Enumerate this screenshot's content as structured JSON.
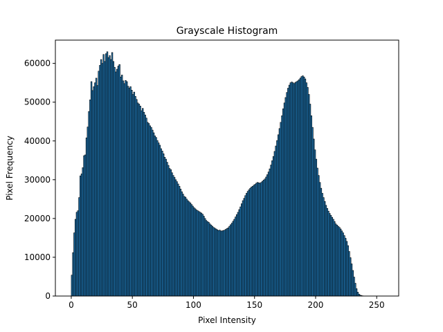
{
  "chart_data": {
    "type": "bar",
    "title": "Grayscale Histogram",
    "xlabel": "Pixel Intensity",
    "ylabel": "Pixel Frequency",
    "xlim": [
      -13,
      268
    ],
    "ylim": [
      0,
      66000
    ],
    "xticks": [
      0,
      50,
      100,
      150,
      200,
      250
    ],
    "yticks": [
      0,
      10000,
      20000,
      30000,
      40000,
      50000,
      60000
    ],
    "grid": false,
    "bar_color": "#1f77b4",
    "edge_color": "#000000",
    "bins_start": 0,
    "bin_width": 1,
    "values": [
      5400,
      11200,
      16300,
      19800,
      21600,
      22000,
      25400,
      31000,
      31500,
      33100,
      36200,
      36400,
      40800,
      43600,
      47600,
      50600,
      55300,
      53000,
      54000,
      55000,
      56200,
      54300,
      58000,
      59500,
      61000,
      60000,
      62300,
      60500,
      62500,
      63000,
      61500,
      62000,
      61000,
      62800,
      60500,
      59000,
      57800,
      58500,
      59300,
      59700,
      56500,
      57000,
      55500,
      54800,
      55600,
      55300,
      54100,
      53600,
      54000,
      53100,
      52000,
      52600,
      51500,
      50700,
      49800,
      49500,
      49000,
      47800,
      48400,
      47400,
      46700,
      45900,
      44800,
      44500,
      43900,
      43500,
      42800,
      42100,
      41300,
      40900,
      40100,
      39500,
      38900,
      38000,
      37400,
      36700,
      35800,
      35300,
      34500,
      33700,
      32900,
      32600,
      31800,
      31100,
      30600,
      30000,
      29500,
      28900,
      28300,
      27600,
      26900,
      26300,
      25700,
      25500,
      25000,
      24600,
      24300,
      24000,
      23600,
      23200,
      22800,
      22500,
      22200,
      22000,
      21800,
      21600,
      21400,
      21100,
      20600,
      20000,
      19500,
      19200,
      19000,
      18600,
      18300,
      18000,
      17700,
      17500,
      17300,
      17100,
      16900,
      17000,
      16800,
      16800,
      16900,
      17000,
      17200,
      17400,
      17600,
      18000,
      18400,
      18800,
      19300,
      19800,
      20400,
      21000,
      21600,
      22300,
      23000,
      23800,
      24600,
      25200,
      25900,
      26500,
      27000,
      27400,
      27800,
      28100,
      28300,
      28600,
      28800,
      29100,
      29300,
      29200,
      29100,
      29300,
      29600,
      29900,
      30200,
      30700,
      31300,
      32000,
      32800,
      33800,
      34900,
      36000,
      37300,
      38700,
      40100,
      41600,
      43200,
      44800,
      46500,
      48300,
      49800,
      51200,
      52500,
      53600,
      54400,
      55000,
      55200,
      55000,
      54800,
      55100,
      55300,
      55500,
      55800,
      56200,
      56600,
      56800,
      56500,
      56000,
      55000,
      53800,
      52000,
      49500,
      46500,
      43500,
      40500,
      37700,
      35300,
      33000,
      31100,
      29300,
      27800,
      26500,
      25400,
      24400,
      23400,
      22600,
      21900,
      21300,
      20800,
      20300,
      19800,
      19200,
      18600,
      18300,
      18000,
      17700,
      17300,
      16800,
      16300,
      15600,
      14900,
      14100,
      13000,
      11500,
      9900,
      8300,
      6600,
      4900,
      3300,
      1900,
      1000,
      500,
      250,
      120,
      60,
      30,
      15,
      8,
      4,
      2,
      1,
      0
    ]
  }
}
